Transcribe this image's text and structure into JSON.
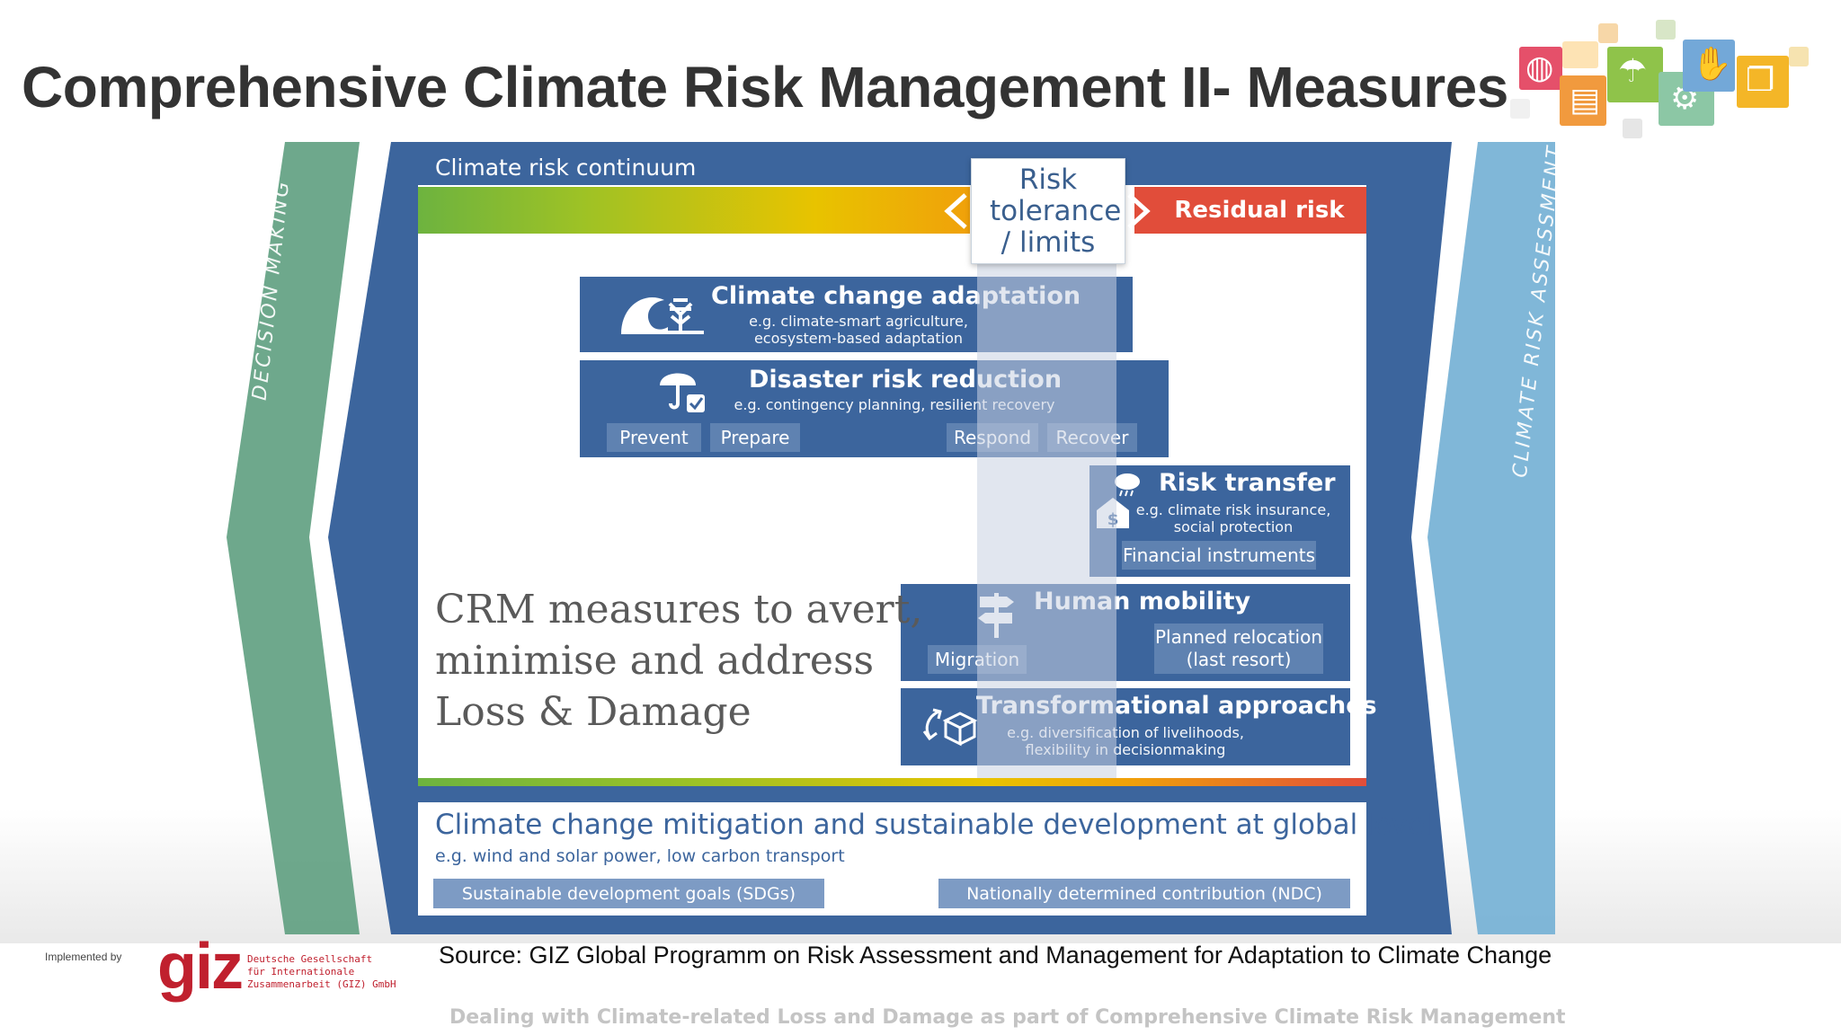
{
  "slide": {
    "title": "Comprehensive Climate Risk Management II- Measures"
  },
  "colors": {
    "frame_blue": "#3c659d",
    "decision_green": "#5e9e7f",
    "assessment_blue": "#79b3d6",
    "residual_red": "#e14d3a",
    "giz_red": "#c0202e"
  },
  "diagram": {
    "left_side_label": "DECISION MAKING",
    "right_side_label": "CLIMATE RISK ASSESSMENT",
    "continuum_label": "Climate risk continuum",
    "tolerance_label": "Risk tolerance / limits",
    "residual_label": "Residual risk",
    "blocks": {
      "adaptation": {
        "title": "Climate change adaptation",
        "sub1": "e.g. climate-smart agriculture,",
        "sub2": "ecosystem-based adaptation",
        "icon": "wave-tree-icon"
      },
      "drr": {
        "title": "Disaster risk reduction",
        "sub": "e.g. contingency planning, resilient recovery",
        "icon": "umbrella-check-icon",
        "phases": [
          "Prevent",
          "Prepare",
          "Respond",
          "Recover"
        ]
      },
      "transfer": {
        "title": "Risk transfer",
        "sub1": "e.g. climate risk insurance,",
        "sub2": "social protection",
        "tag": "Financial instruments",
        "icon": "house-money-cloud-icon"
      },
      "mobility": {
        "title": "Human mobility",
        "left_tag": "Migration",
        "right_tag1": "Planned relocation",
        "right_tag2": "(last resort)",
        "icon": "signpost-icon"
      },
      "transformational": {
        "title": "Transformational approaches",
        "sub1": "e.g. diversification of livelihoods,",
        "sub2": "flexibility in decisionmaking",
        "icon": "box-arrows-icon"
      }
    },
    "crm_text": {
      "line1": "CRM measures to avert,",
      "line2": "minimise and address",
      "line3": "Loss & Damage"
    },
    "mitigation": {
      "title": "Climate change mitigation and sustainable development at global level",
      "sub": "e.g. wind and solar power, low carbon transport",
      "tag_left": "Sustainable development goals (SDGs)",
      "tag_right": "Nationally determined contribution (NDC)"
    }
  },
  "footer": {
    "implemented_by": "Implemented by",
    "giz_logo": "giz",
    "giz_name": "Deutsche Gesellschaft\nfür Internationale\nZusammenarbeit (GIZ) GmbH",
    "source": "Source: GIZ Global Programm on Risk Assessment and Management for Adaptation to Climate Change",
    "subtitle": "Dealing with Climate-related Loss and Damage as part of Comprehensive Climate Risk Management"
  }
}
